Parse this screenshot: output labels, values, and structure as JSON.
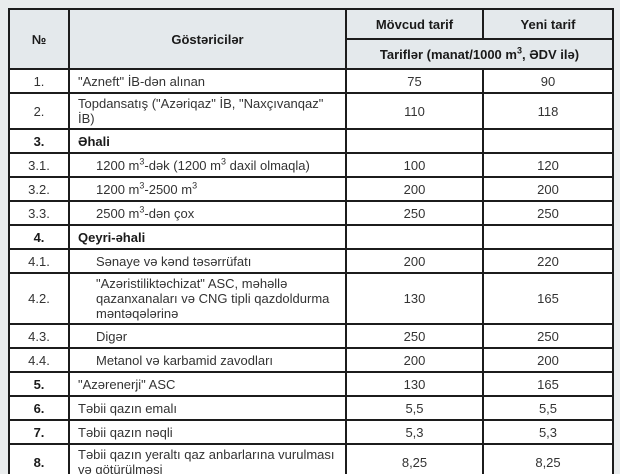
{
  "chart_data": {
    "type": "table",
    "columns": [
      "№",
      "Göstəricilər",
      "Mövcud tarif",
      "Yeni tarif"
    ],
    "subheader": "Tariflər (manat/1000 m³, ƏDV ilə)",
    "rows": [
      {
        "no": "1.",
        "label": "\"Azneft\" İB-dən alınan",
        "current": "75",
        "new": "90"
      },
      {
        "no": "2.",
        "label": "Topdansatış (\"Azəriqaz\" İB, \"Naxçıvanqaz\" İB)",
        "current": "110",
        "new": "118"
      },
      {
        "no": "3.",
        "label": "Əhali",
        "current": "",
        "new": ""
      },
      {
        "no": "3.1.",
        "label": "1200 m³-dək (1200 m³ daxil olmaqla)",
        "current": "100",
        "new": "120"
      },
      {
        "no": "3.2.",
        "label": "1200 m³-2500 m³",
        "current": "200",
        "new": "200"
      },
      {
        "no": "3.3.",
        "label": "2500 m³-dən çox",
        "current": "250",
        "new": "250"
      },
      {
        "no": "4.",
        "label": "Qeyri-əhali",
        "current": "",
        "new": ""
      },
      {
        "no": "4.1.",
        "label": "Sənaye və kənd təsərrüfatı",
        "current": "200",
        "new": "220"
      },
      {
        "no": "4.2.",
        "label": "\"Azəristiliktəchizat\" ASC, məhəllə qazanxanaları və CNG tipli qazdoldurma məntəqələrinə",
        "current": "130",
        "new": "165"
      },
      {
        "no": "4.3.",
        "label": "Digər",
        "current": "250",
        "new": "250"
      },
      {
        "no": "4.4.",
        "label": "Metanol və karbamid zavodları",
        "current": "200",
        "new": "200"
      },
      {
        "no": "5.",
        "label": "\"Azərenerji\" ASC",
        "current": "130",
        "new": "165"
      },
      {
        "no": "6.",
        "label": "Təbii qazın emalı",
        "current": "5,5",
        "new": "5,5"
      },
      {
        "no": "7.",
        "label": "Təbii qazın nəqli",
        "current": "5,3",
        "new": "5,3"
      },
      {
        "no": "8.",
        "label": "Təbii qazın yeraltı qaz anbarlarına vurulması və götürülməsi",
        "current": "8,25",
        "new": "8,25"
      }
    ]
  }
}
